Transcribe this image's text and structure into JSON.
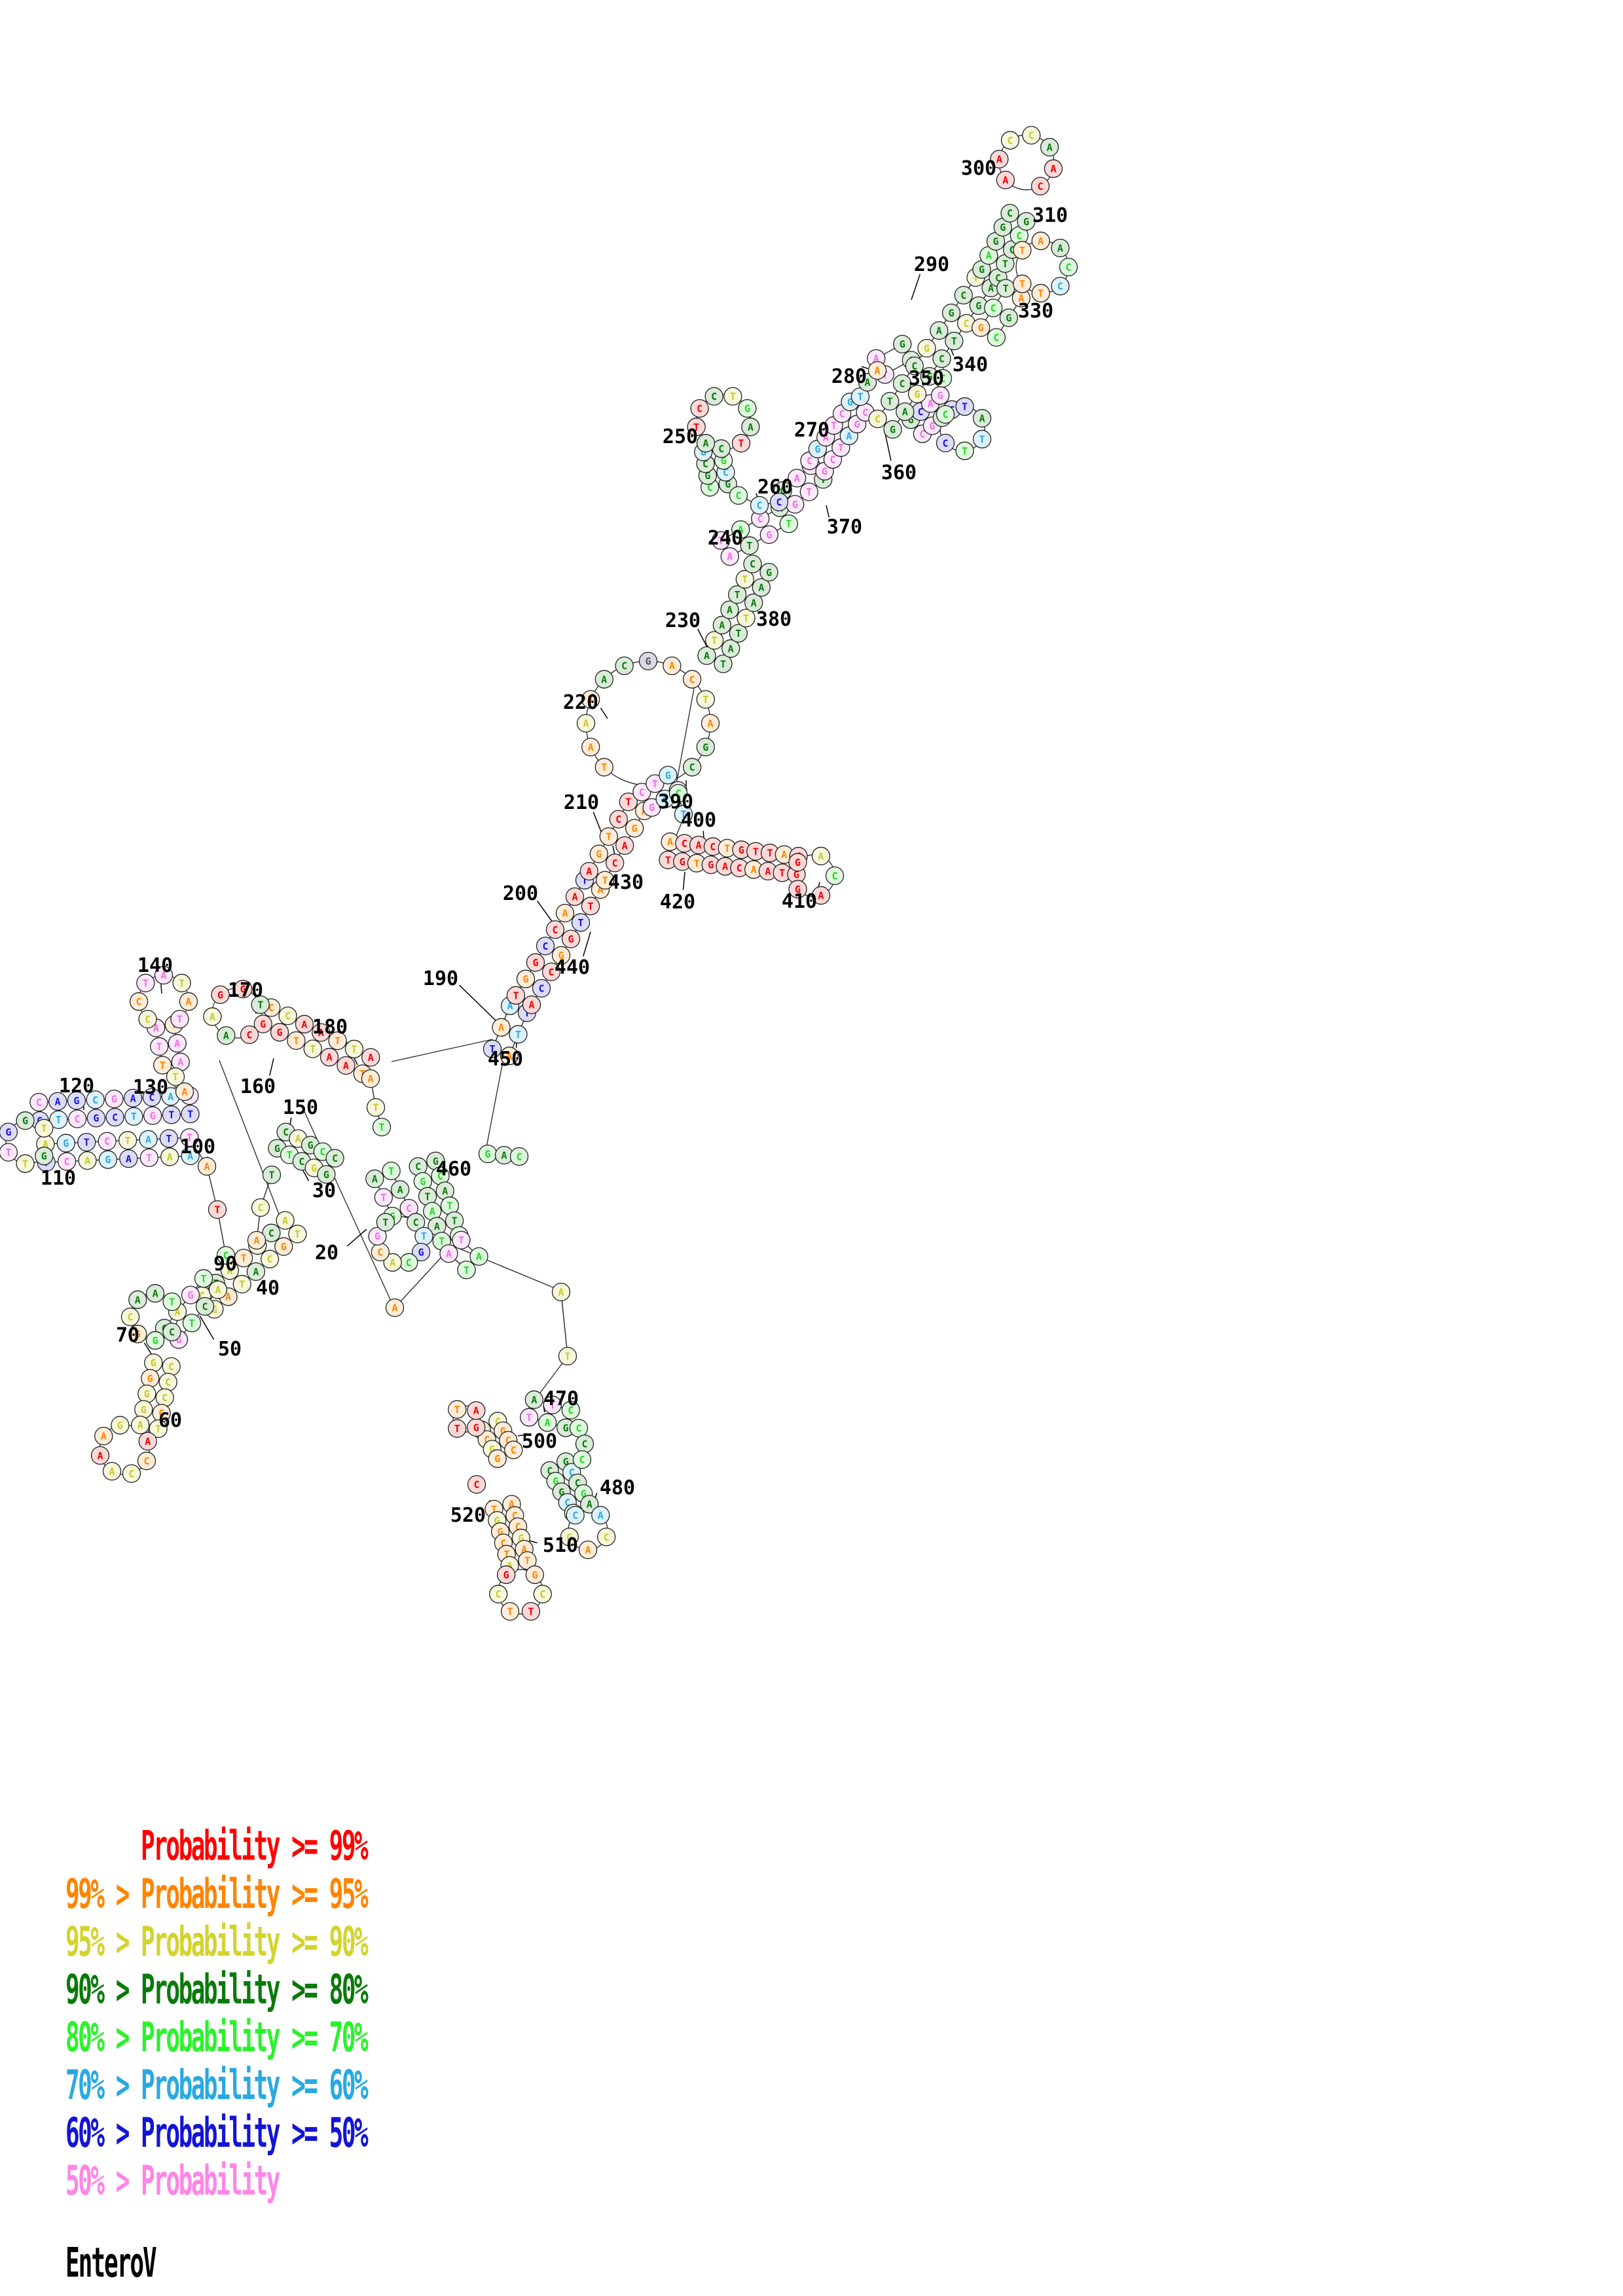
{
  "title": "EnteroV",
  "legend": {
    "rows": [
      {
        "text": "      Probability >= 99%",
        "color": "#FF0000"
      },
      {
        "text": "99% > Probability >= 95%",
        "color": "#FF8400"
      },
      {
        "text": "95% > Probability >= 90%",
        "color": "#D3D32E"
      },
      {
        "text": "90% > Probability >= 80%",
        "color": "#0A7A0A"
      },
      {
        "text": "80% > Probability >= 70%",
        "color": "#2BF22B"
      },
      {
        "text": "70% > Probability >= 60%",
        "color": "#29A9E1"
      },
      {
        "text": "60% > Probability >= 50%",
        "color": "#1414D6"
      },
      {
        "text": "50% > Probability",
        "color": "#FF85E8"
      }
    ]
  },
  "palette": {
    "r": "#E80000",
    "o": "#FF8400",
    "y": "#C9C923",
    "g": "#0A7A0A",
    "G": "#22D622",
    "c": "#29A9E1",
    "b": "#1414D6",
    "p": "#F06EE4"
  },
  "structure": {
    "helices": [
      [
        585,
        1795,
        612,
        1852,
        3,
        "gpG",
        "ATG"
      ],
      [
        430,
        1742,
        505,
        1782,
        5,
        "gGgy",
        "GTCGG"
      ],
      [
        318,
        1990,
        445,
        1875,
        7,
        "yoyg",
        "GATACGT"
      ],
      [
        262,
        2038,
        322,
        1962,
        4,
        "pGgy",
        "GTCA"
      ],
      [
        248,
        2085,
        228,
        2180,
        5,
        "yoyy",
        "GGGGA"
      ],
      [
        60,
        1698,
        290,
        1688,
        9,
        "bcpb",
        "GTCGCTGTT"
      ],
      [
        70,
        1762,
        290,
        1752,
        8,
        "bpyc",
        "TCAGATAA"
      ],
      [
        252,
        1568,
        262,
        1625,
        3,
        "ppo",
        "ATT"
      ],
      [
        408,
        1552,
        560,
        1628,
        7,
        "rroy",
        "GGTTAAT"
      ],
      [
        765,
        1608,
        792,
        1542,
        3,
        "ocb",
        "ATT"
      ],
      [
        800,
        1528,
        905,
        1352,
        8,
        "rbro",
        "ACCGGTTA"
      ],
      [
        912,
        1338,
        972,
        1232,
        5,
        "orro",
        "TCAGA"
      ],
      [
        988,
        1222,
        1028,
        1196,
        3,
        "pcp",
        "GAC"
      ],
      [
        1092,
        1008,
        1162,
        868,
        7,
        "gggy",
        "TATTAAG"
      ],
      [
        1108,
        838,
        1198,
        788,
        4,
        "pgpG",
        "ATGT"
      ],
      [
        1098,
        742,
        1088,
        688,
        4,
        "gcGg",
        "GCGC"
      ],
      [
        1205,
        760,
        1248,
        722,
        3,
        "ppg",
        "GTT"
      ],
      [
        1248,
        712,
        1310,
        622,
        6,
        "pppc",
        "GCTAGC"
      ],
      [
        1345,
        560,
        1385,
        538,
        2,
        "pg",
        "TC"
      ],
      [
        1400,
        652,
        1445,
        615,
        4,
        "ppgb",
        "CGTC"
      ],
      [
        1352,
        648,
        1502,
        432,
        9,
        "ggyg",
        "GAGGCTCGA"
      ],
      [
        1512,
        418,
        1555,
        332,
        5,
        "gggG",
        "CTCCG"
      ],
      [
        1548,
        448,
        1510,
        508,
        3,
        "gGo",
        "TCG"
      ],
      [
        1022,
        1300,
        1218,
        1322,
        10,
        "rror",
        "TGTGACAATG"
      ],
      [
        652,
        1778,
        688,
        1892,
        6,
        "gGgG",
        "CGTAAT"
      ],
      [
        695,
        1905,
        722,
        1930,
        2,
        "pG",
        "AT"
      ],
      [
        812,
        2152,
        868,
        2168,
        3,
        "pGg",
        "TAG"
      ],
      [
        852,
        2240,
        888,
        2305,
        5,
        "gGgc",
        "CGGCT"
      ],
      [
        748,
        2178,
        772,
        2222,
        4,
        "ooyo",
        "GCGG"
      ],
      [
        768,
        2302,
        792,
        2388,
        6,
        "oyoo",
        "TGGCTA"
      ]
    ],
    "loops": [
      [
        612,
        1895,
        36,
        8,
        -50,
        230,
        "gcbGyop",
        "CTGCACGT"
      ],
      [
        235,
        2012,
        36,
        7,
        40,
        320,
        "gGoyg",
        "CGGCAAT"
      ],
      [
        190,
        2215,
        38,
        7,
        -20,
        260,
        "royy",
        "ACCAAAG"
      ],
      [
        42,
        1745,
        33,
        6,
        40,
        320,
        "gypb",
        "GTTGGT"
      ],
      [
        250,
        1528,
        38,
        7,
        130,
        410,
        "yopp",
        "CCTATAT"
      ],
      [
        362,
        1548,
        38,
        6,
        60,
        340,
        "rgyr",
        "CAAGGT"
      ],
      [
        990,
        1105,
        95,
        13,
        135,
        405,
        "ooyogga",
        "TAATACGACTAGC"
      ],
      [
        1105,
        645,
        42,
        8,
        130,
        410,
        "grrgyG",
        "ATCCTGAT"
      ],
      [
        1568,
        248,
        42,
        7,
        140,
        420,
        "rryyg",
        "AACCAAC"
      ],
      [
        1592,
        408,
        40,
        7,
        220,
        500,
        "oogGc",
        "TAACCTT"
      ],
      [
        1470,
        655,
        34,
        6,
        220,
        500,
        "Gbgc",
        "CTATTC"
      ],
      [
        1243,
        1338,
        32,
        5,
        220,
        500,
        "ryGr",
        "GACAG"
      ],
      [
        898,
        2338,
        30,
        5,
        -50,
        230,
        "cyoy",
        "ACAGC"
      ],
      [
        795,
        2432,
        34,
        6,
        -50,
        230,
        "oyr",
        "GCTTCG"
      ],
      [
        712,
        2168,
        20,
        4,
        40,
        320,
        "rro",
        "GTTA"
      ]
    ],
    "strands": [
      {
        "p": [
          [
            415,
            1795
          ],
          [
            398,
            1845
          ],
          [
            392,
            1895
          ]
        ],
        "c": "gyo",
        "s": "TCA"
      },
      {
        "p": [
          [
            345,
            1918
          ],
          [
            332,
            1848
          ],
          [
            316,
            1782
          ]
        ],
        "c": "Gro",
        "s": "CTA"
      },
      {
        "p": [
          [
            268,
            1645
          ],
          [
            282,
            1668
          ]
        ],
        "c": "yo",
        "s": "TA"
      },
      {
        "p": [
          [
            566,
            1648
          ],
          [
            574,
            1692
          ],
          [
            583,
            1722
          ]
        ],
        "c": "oyG",
        "s": "ATT"
      },
      {
        "p": [
          [
            1128,
            757
          ],
          [
            1160,
            772
          ],
          [
            1190,
            767
          ]
        ],
        "c": "Gcb",
        "s": "CCC"
      },
      {
        "p": [
          [
            1314,
            606
          ],
          [
            1325,
            584
          ],
          [
            1340,
            566
          ]
        ],
        "c": "cgo",
        "s": "TAA"
      },
      {
        "p": [
          [
            1036,
            1212
          ],
          [
            1044,
            1244
          ]
        ],
        "c": "Gc",
        "s": "CT"
      },
      {
        "p": [
          [
            745,
            1763
          ],
          [
            770,
            1765
          ],
          [
            793,
            1767
          ]
        ],
        "c": "GgG",
        "s": "GAC"
      },
      {
        "p": [
          [
            603,
            1998
          ]
        ],
        "c": "o",
        "s": "A"
      },
      {
        "p": [
          [
            857,
            1974
          ],
          [
            867,
            2072
          ]
        ],
        "c": "yy",
        "s": "AT"
      },
      {
        "p": [
          [
            884,
            2182
          ],
          [
            893,
            2206
          ],
          [
            889,
            2230
          ]
        ],
        "c": "GgG",
        "s": "CCC"
      },
      {
        "p": [
          [
            728,
            2268
          ]
        ],
        "c": "r",
        "s": "C"
      },
      {
        "p": [
          [
            1440,
            578
          ]
        ],
        "c": "G",
        "s": "C"
      }
    ],
    "connectors": [
      [
        598,
        1622,
        752,
        1588
      ],
      [
        1060,
        1052,
        1033,
        1198
      ],
      [
        768,
        1622,
        742,
        1758
      ],
      [
        462,
        1692,
        600,
        1994
      ],
      [
        603,
        1998,
        686,
        1908
      ],
      [
        688,
        1902,
        852,
        1970
      ],
      [
        867,
        2072,
        807,
        2152
      ],
      [
        335,
        1620,
        428,
        1860
      ],
      [
        283,
        1666,
        293,
        1686
      ],
      [
        1045,
        1248,
        1024,
        1298
      ],
      [
        1440,
        547,
        1441,
        574
      ],
      [
        316,
        1782,
        302,
        1758
      ]
    ],
    "labels": [
      [
        "20",
        499,
        1913,
        560,
        1878
      ],
      [
        "30",
        495,
        1818,
        452,
        1768
      ],
      [
        "40",
        409,
        1967,
        400,
        1940
      ],
      [
        "50",
        351,
        2060,
        305,
        2010
      ],
      [
        "60",
        260,
        2169,
        222,
        2196
      ],
      [
        "70",
        195,
        2039,
        242,
        2086
      ],
      [
        "90",
        344,
        1930,
        310,
        1958
      ],
      [
        "100",
        302,
        1751,
        315,
        1780
      ],
      [
        "110",
        89,
        1799,
        68,
        1752
      ],
      [
        "120",
        117,
        1658,
        128,
        1696
      ],
      [
        "130",
        230,
        1660,
        280,
        1662
      ],
      [
        "140",
        237,
        1474,
        247,
        1518
      ],
      [
        "150",
        459,
        1691,
        441,
        1733
      ],
      [
        "160",
        394,
        1659,
        418,
        1617
      ],
      [
        "170",
        375,
        1512,
        391,
        1549
      ],
      [
        "180",
        504,
        1568,
        546,
        1627
      ],
      [
        "190",
        673,
        1494,
        758,
        1560
      ],
      [
        "200",
        795,
        1364,
        852,
        1420
      ],
      [
        "210",
        888,
        1225,
        925,
        1288
      ],
      [
        "220",
        887,
        1072,
        928,
        1098
      ],
      [
        "230",
        1043,
        947,
        1086,
        1000
      ],
      [
        "240",
        1108,
        821,
        1122,
        858
      ],
      [
        "250",
        1039,
        666,
        1072,
        664
      ],
      [
        "260",
        1184,
        743,
        1158,
        762
      ],
      [
        "270",
        1240,
        656,
        1262,
        700
      ],
      [
        "280",
        1297,
        574,
        1316,
        560
      ],
      [
        "290",
        1423,
        403,
        1392,
        458
      ],
      [
        "300",
        1495,
        256,
        1538,
        286
      ],
      [
        "310",
        1604,
        328,
        1560,
        348
      ],
      [
        "330",
        1582,
        474,
        1540,
        432
      ],
      [
        "340",
        1482,
        556,
        1448,
        522
      ],
      [
        "350",
        1415,
        577,
        1438,
        606
      ],
      [
        "360",
        1373,
        721,
        1352,
        662
      ],
      [
        "370",
        1290,
        804,
        1262,
        772
      ],
      [
        "380",
        1182,
        945,
        1152,
        902
      ],
      [
        "390",
        1032,
        1224,
        1048,
        1192
      ],
      [
        "400",
        1067,
        1252,
        1076,
        1296
      ],
      [
        "410",
        1221,
        1376,
        1252,
        1348
      ],
      [
        "420",
        1035,
        1377,
        1046,
        1332
      ],
      [
        "430",
        956,
        1347,
        936,
        1292
      ],
      [
        "440",
        874,
        1477,
        902,
        1424
      ],
      [
        "450",
        772,
        1617,
        790,
        1582
      ],
      [
        "460",
        693,
        1785,
        668,
        1818
      ],
      [
        "470",
        857,
        2136,
        832,
        2158
      ],
      [
        "480",
        943,
        2272,
        908,
        2292
      ],
      [
        "500",
        824,
        2201,
        803,
        2192
      ],
      [
        "510",
        856,
        2360,
        802,
        2352
      ],
      [
        "520",
        715,
        2314,
        748,
        2292
      ]
    ]
  }
}
